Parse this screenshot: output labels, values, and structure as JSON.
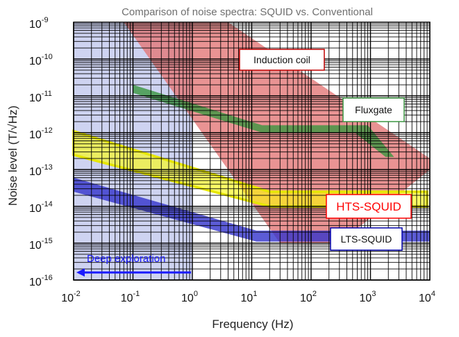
{
  "chart_data": {
    "type": "area",
    "title": "Comparison of noise spectra: SQUID vs. Conventional",
    "xlabel": "Frequency (Hz)",
    "ylabel": "Noise level (T/√Hz)",
    "x_scale": "log",
    "y_scale": "log",
    "xlim": [
      0.01,
      10000
    ],
    "ylim": [
      1e-16,
      1e-09
    ],
    "grid": true,
    "x_ticks": [
      {
        "value": 0.01,
        "base": "10",
        "exp": "-2"
      },
      {
        "value": 0.1,
        "base": "10",
        "exp": "-1"
      },
      {
        "value": 1,
        "base": "10",
        "exp": "0"
      },
      {
        "value": 10,
        "base": "10",
        "exp": "1"
      },
      {
        "value": 100,
        "base": "10",
        "exp": "2"
      },
      {
        "value": 1000,
        "base": "10",
        "exp": "3"
      },
      {
        "value": 10000,
        "base": "10",
        "exp": "4"
      }
    ],
    "y_ticks": [
      {
        "value": 1e-09,
        "base": "10",
        "exp": "-9"
      },
      {
        "value": 1e-10,
        "base": "10",
        "exp": "-10"
      },
      {
        "value": 1e-11,
        "base": "10",
        "exp": "-11"
      },
      {
        "value": 1e-12,
        "base": "10",
        "exp": "-12"
      },
      {
        "value": 1e-13,
        "base": "10",
        "exp": "-13"
      },
      {
        "value": 1e-14,
        "base": "10",
        "exp": "-14"
      },
      {
        "value": 1e-15,
        "base": "10",
        "exp": "-15"
      },
      {
        "value": 1e-16,
        "base": "10",
        "exp": "-16"
      }
    ],
    "regions": [
      {
        "name": "Deep exploration",
        "kind": "band",
        "color": "#c5cbee",
        "x_range": [
          0.01,
          1
        ],
        "y_range": [
          1e-16,
          1e-09
        ]
      },
      {
        "name": "Induction coil",
        "kind": "polygon",
        "color": "#e47878",
        "label_color": "#c00000",
        "polygon": [
          [
            0.07,
            1e-09
          ],
          [
            4,
            1e-09
          ],
          [
            10000,
            2e-13
          ],
          [
            10000,
            1e-13
          ],
          [
            300,
            1e-15
          ],
          [
            30,
            1e-15
          ]
        ]
      },
      {
        "name": "Fluxgate",
        "kind": "band",
        "color": "#3a9640",
        "label_color": "#3a9640",
        "upper": [
          [
            0.1,
            2e-11
          ],
          [
            15,
            1.6e-12
          ],
          [
            900,
            1.6e-12
          ],
          [
            2500,
            2.2e-13
          ]
        ],
        "lower": [
          [
            0.1,
            1.2e-11
          ],
          [
            15,
            1e-12
          ],
          [
            550,
            1e-12
          ],
          [
            1800,
            2.2e-13
          ]
        ]
      },
      {
        "name": "HTS-SQUID",
        "kind": "band",
        "color": "#ffff00",
        "edge_color": "#e6e600",
        "label_color": "#ff0000",
        "upper": [
          [
            0.01,
            1.1e-12
          ],
          [
            20,
            2.5e-14
          ],
          [
            9000,
            2.5e-14
          ]
        ],
        "lower": [
          [
            0.01,
            2.5e-13
          ],
          [
            20,
            1e-14
          ],
          [
            9000,
            1e-14
          ]
        ]
      },
      {
        "name": "LTS-SQUID",
        "kind": "band",
        "color": "#3333cc",
        "label_color": "#0000aa",
        "upper": [
          [
            0.01,
            6e-14
          ],
          [
            12,
            2.2e-15
          ],
          [
            10000,
            2.2e-15
          ]
        ],
        "lower": [
          [
            0.01,
            2.5e-14
          ],
          [
            12,
            1.1e-15
          ],
          [
            10000,
            1.1e-15
          ]
        ]
      }
    ],
    "annotation": {
      "text": "Deep exploration",
      "arrow_from": 1,
      "arrow_to": 0.01,
      "y": 1.6e-16,
      "color": "#1a1aff"
    }
  }
}
